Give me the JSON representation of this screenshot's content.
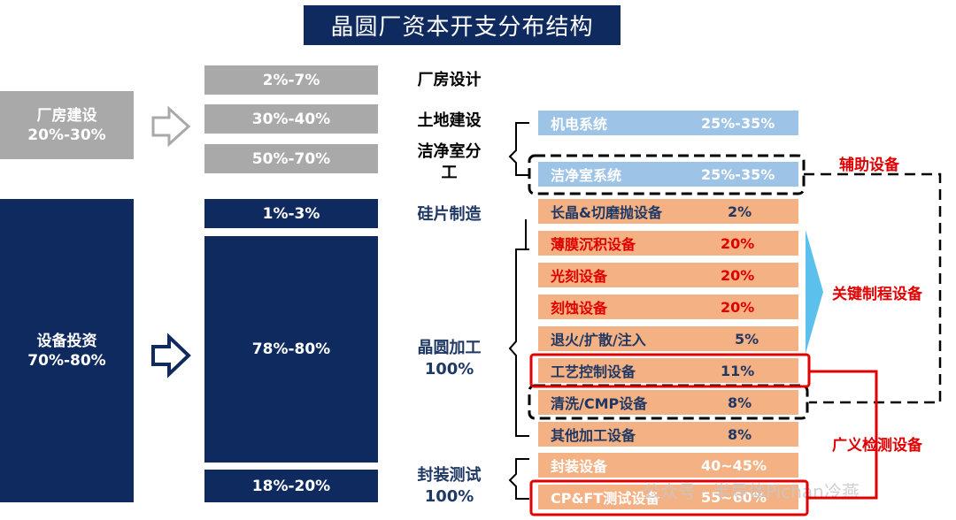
{
  "title": "晶圆厂资本开支分布结构",
  "left": {
    "factory": {
      "label": "厂房建设",
      "pct": "20%-30%"
    },
    "equipment": {
      "label": "设备投资",
      "pct": "70%-80%"
    }
  },
  "bars": {
    "b1": "2%-7%",
    "b2": "30%-40%",
    "b3": "50%-70%",
    "b4": "1%-3%",
    "b5": "78%-80%",
    "b6": "18%-20%"
  },
  "mid": {
    "m1": "厂房设计",
    "m2": "土地建设",
    "m3a": "洁净室分",
    "m3b": "工",
    "m4": "硅片制造",
    "m5a": "晶圆加工",
    "m5b": "100%",
    "m6a": "封装测试",
    "m6b": "100%"
  },
  "rows": {
    "r1": {
      "name": "机电系统",
      "value": "25%-35%"
    },
    "r2": {
      "name": "洁净室系统",
      "value": "25%-35%"
    },
    "r3": {
      "name": "长晶&切磨抛设备",
      "value": "2%"
    },
    "r4": {
      "name": "薄膜沉积设备",
      "value": "20%"
    },
    "r5": {
      "name": "光刻设备",
      "value": "20%"
    },
    "r6": {
      "name": "刻蚀设备",
      "value": "20%"
    },
    "r7": {
      "name": "退火/扩散/注入",
      "value": "5%"
    },
    "r8": {
      "name": "工艺控制设备",
      "value": "11%"
    },
    "r9": {
      "name": "清洗/CMP设备",
      "value": "8%"
    },
    "r10": {
      "name": "其他加工设备",
      "value": "8%"
    },
    "r11": {
      "name": "封装设备",
      "value": "40~45%"
    },
    "r12": {
      "name": "CP&FT测试设备",
      "value": "55~60%"
    }
  },
  "side": {
    "aux": "辅助设备",
    "key": "关键制程设备",
    "broad": "广义检测设备"
  },
  "watermark": "公众号 · 半导体Pichan冷燕",
  "colors": {
    "navy": "#0f2a5f",
    "grey": "#a9a9a9",
    "lightblue": "#9dc3e6",
    "orange": "#f4b183",
    "red": "#e00000",
    "key_arrow": "#5bc0eb"
  }
}
